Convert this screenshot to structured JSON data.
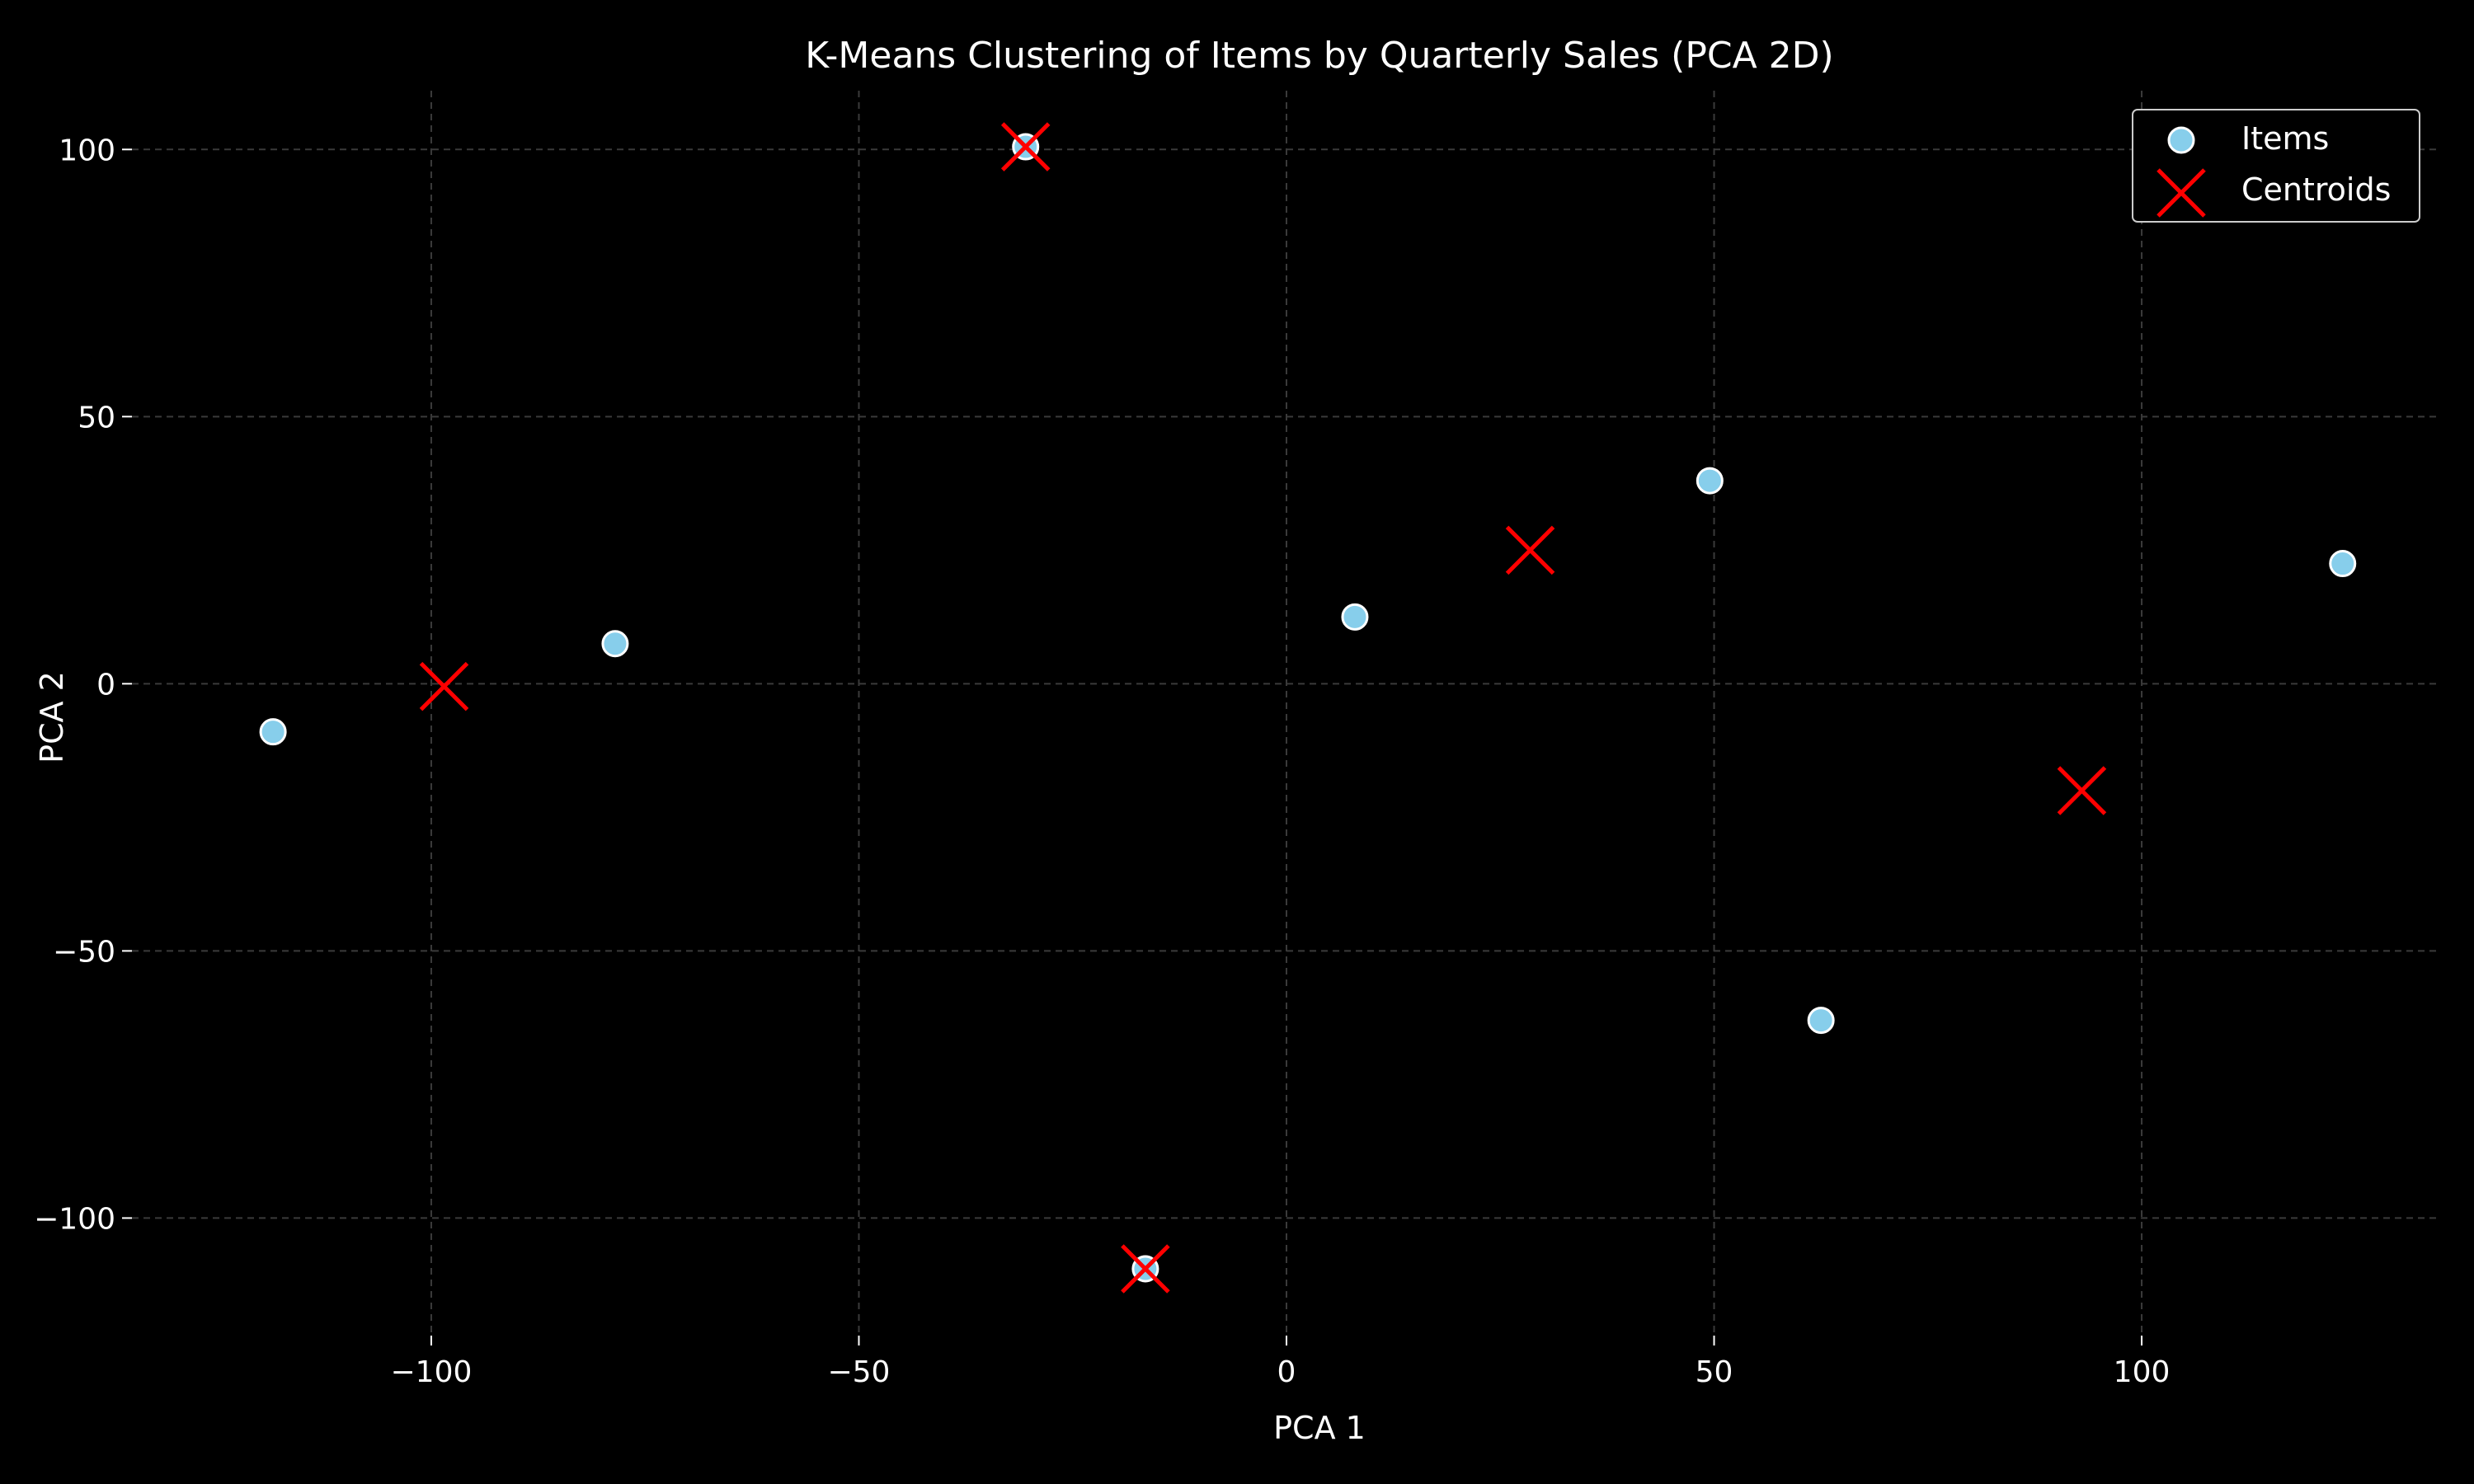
{
  "chart_data": {
    "type": "scatter",
    "title": "K-Means Clustering of Items by Quarterly Sales (PCA 2D)",
    "xlabel": "PCA 1",
    "ylabel": "PCA 2",
    "xlim": [
      -135,
      135
    ],
    "ylim": [
      -122,
      111
    ],
    "x_ticks": [
      -100,
      -50,
      0,
      50,
      100
    ],
    "y_ticks": [
      -100,
      -50,
      0,
      50,
      100
    ],
    "x_tick_labels": [
      "−100",
      "−50",
      "0",
      "50",
      "100"
    ],
    "y_tick_labels": [
      "−100",
      "−50",
      "0",
      "50",
      "100"
    ],
    "grid": true,
    "legend_position": "top-right",
    "background": "#000000",
    "series": [
      {
        "name": "Items",
        "marker": "circle",
        "color": "#87ceeb",
        "edge_color": "#ffffff",
        "points": [
          {
            "x": -118.5,
            "y": -9
          },
          {
            "x": -78.5,
            "y": 7.5
          },
          {
            "x": -30.5,
            "y": 100.5
          },
          {
            "x": -16.5,
            "y": -109.5
          },
          {
            "x": 8.0,
            "y": 12.5
          },
          {
            "x": 49.5,
            "y": 38
          },
          {
            "x": 62.5,
            "y": -63
          },
          {
            "x": 123.5,
            "y": 22.5
          }
        ]
      },
      {
        "name": "Centroids",
        "marker": "x",
        "color": "#ff0000",
        "points": [
          {
            "x": -98.5,
            "y": -0.5
          },
          {
            "x": -30.5,
            "y": 100.5
          },
          {
            "x": -16.5,
            "y": -109.5
          },
          {
            "x": 28.5,
            "y": 25
          },
          {
            "x": 93.0,
            "y": -20
          }
        ]
      }
    ]
  }
}
